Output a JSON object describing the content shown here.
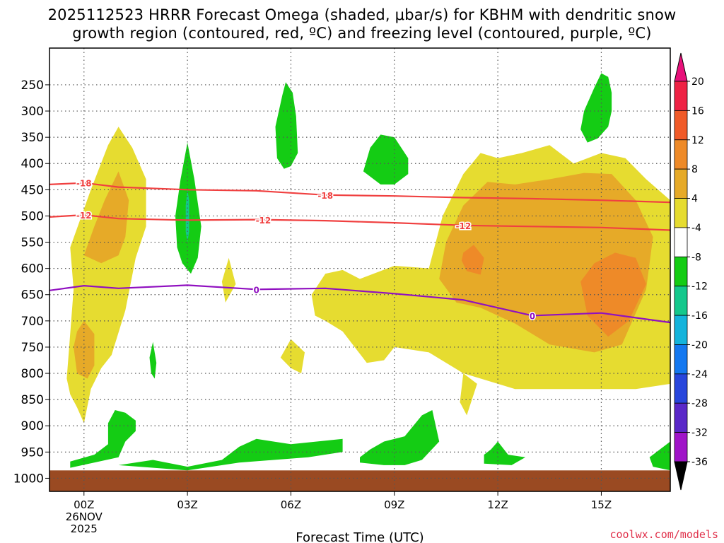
{
  "chart_data": {
    "type": "heatmap",
    "title_line1": "2025112523 HRRR Forecast Omega (shaded, μbar/s) for KBHM with dendritic snow",
    "title_line2": "growth region (contoured, red, ºC) and freezing level (contoured, purple, ºC)",
    "xlabel": "Forecast Time (UTC)",
    "ylabel": "",
    "x_range_hours": [
      -1,
      17
    ],
    "x_ticks": [
      {
        "hour": 0,
        "label": "00Z"
      },
      {
        "hour": 3,
        "label": "03Z"
      },
      {
        "hour": 6,
        "label": "06Z"
      },
      {
        "hour": 9,
        "label": "09Z"
      },
      {
        "hour": 12,
        "label": "12Z"
      },
      {
        "hour": 15,
        "label": "15Z"
      }
    ],
    "x_date_line1": "26NOV",
    "x_date_line2": "2025",
    "y_range_hpa": [
      1025,
      180
    ],
    "y_ticks": [
      250,
      300,
      350,
      400,
      450,
      500,
      550,
      600,
      650,
      700,
      750,
      800,
      850,
      900,
      950,
      1000
    ],
    "colorbar": {
      "labels": [
        "20",
        "16",
        "12",
        "8",
        "4",
        "-4",
        "-8",
        "-12",
        "-16",
        "-20",
        "-24",
        "-28",
        "-32",
        "-36"
      ],
      "colors": [
        "#ee2244",
        "#f05a28",
        "#ee8a28",
        "#e6aa28",
        "#e6dc30",
        "#ffffff",
        "#14cc14",
        "#14c88c",
        "#14b4dc",
        "#1478f0",
        "#2846dc",
        "#5a28c8",
        "#a014c8",
        "#a0a0a0"
      ],
      "top_cap_color": "#e8107a",
      "bottom_cap_color": "#000000"
    },
    "contours": [
      {
        "name": "dendritic -18C",
        "label": "-18",
        "color": "#f04040",
        "points": [
          [
            -1,
            440
          ],
          [
            0,
            437
          ],
          [
            1,
            445
          ],
          [
            3,
            450
          ],
          [
            5,
            452
          ],
          [
            7,
            460
          ],
          [
            9,
            462
          ],
          [
            11,
            465
          ],
          [
            13,
            467
          ],
          [
            15,
            470
          ],
          [
            17,
            474
          ]
        ],
        "label_hours": [
          0,
          7
        ]
      },
      {
        "name": "dendritic -12C",
        "label": "-12",
        "color": "#f04040",
        "points": [
          [
            -1,
            502
          ],
          [
            0,
            498
          ],
          [
            1,
            505
          ],
          [
            3,
            508
          ],
          [
            5,
            507
          ],
          [
            7,
            509
          ],
          [
            9,
            513
          ],
          [
            11,
            518
          ],
          [
            13,
            520
          ],
          [
            15,
            522
          ],
          [
            17,
            527
          ]
        ],
        "label_hours": [
          0,
          5.2,
          11
        ]
      },
      {
        "name": "freezing level 0C",
        "label": "0",
        "color": "#9010c0",
        "points": [
          [
            -1,
            642
          ],
          [
            0,
            633
          ],
          [
            1,
            638
          ],
          [
            3,
            632
          ],
          [
            5,
            640
          ],
          [
            7,
            638
          ],
          [
            9,
            648
          ],
          [
            11,
            660
          ],
          [
            13,
            690
          ],
          [
            15,
            685
          ],
          [
            17,
            703
          ]
        ],
        "label_hours": [
          5,
          13
        ]
      }
    ],
    "shaded_regions": [
      {
        "name": "yellow-main-east",
        "color": "#e6dc30",
        "pts": [
          [
            6.6,
            650
          ],
          [
            7,
            610
          ],
          [
            7.5,
            603
          ],
          [
            8,
            620
          ],
          [
            9,
            595
          ],
          [
            10,
            600
          ],
          [
            10.4,
            500
          ],
          [
            11,
            420
          ],
          [
            11.5,
            380
          ],
          [
            12,
            390
          ],
          [
            12.7,
            380
          ],
          [
            13.5,
            365
          ],
          [
            14.2,
            400
          ],
          [
            15,
            380
          ],
          [
            15.7,
            390
          ],
          [
            16.3,
            430
          ],
          [
            17,
            470
          ],
          [
            17,
            820
          ],
          [
            16,
            830
          ],
          [
            15,
            830
          ],
          [
            14,
            830
          ],
          [
            12.5,
            830
          ],
          [
            11,
            800
          ],
          [
            10,
            760
          ],
          [
            9,
            750
          ],
          [
            8.7,
            775
          ],
          [
            8.2,
            780
          ],
          [
            7.5,
            720
          ],
          [
            7,
            700
          ],
          [
            6.7,
            690
          ]
        ]
      },
      {
        "name": "orange-east",
        "color": "#e6aa28",
        "pts": [
          [
            10.3,
            620
          ],
          [
            10.5,
            550
          ],
          [
            11,
            480
          ],
          [
            11.7,
            435
          ],
          [
            12.5,
            440
          ],
          [
            13.5,
            430
          ],
          [
            14.5,
            418
          ],
          [
            15.3,
            420
          ],
          [
            16,
            470
          ],
          [
            16.5,
            540
          ],
          [
            16.3,
            640
          ],
          [
            15.6,
            745
          ],
          [
            14.8,
            760
          ],
          [
            13.5,
            745
          ],
          [
            12.5,
            705
          ],
          [
            11.5,
            675
          ],
          [
            10.8,
            665
          ]
        ]
      },
      {
        "name": "orange2-east-a",
        "color": "#ee8a28",
        "pts": [
          [
            11,
            570
          ],
          [
            11.3,
            555
          ],
          [
            11.6,
            580
          ],
          [
            11.5,
            612
          ],
          [
            11.1,
            605
          ],
          [
            10.95,
            585
          ]
        ]
      },
      {
        "name": "orange2-east-b",
        "color": "#ee8a28",
        "pts": [
          [
            14.4,
            625
          ],
          [
            14.8,
            590
          ],
          [
            15.4,
            570
          ],
          [
            16,
            580
          ],
          [
            16.3,
            630
          ],
          [
            15.8,
            700
          ],
          [
            15.2,
            730
          ],
          [
            14.6,
            690
          ]
        ]
      },
      {
        "name": "yellow-west",
        "color": "#e6dc30",
        "pts": [
          [
            -0.5,
            810
          ],
          [
            -0.3,
            640
          ],
          [
            -0.4,
            560
          ],
          [
            0.2,
            450
          ],
          [
            0.7,
            365
          ],
          [
            1,
            330
          ],
          [
            1.4,
            370
          ],
          [
            1.8,
            430
          ],
          [
            1.8,
            520
          ],
          [
            1.5,
            580
          ],
          [
            1.2,
            680
          ],
          [
            0.8,
            765
          ],
          [
            0.5,
            790
          ],
          [
            0.2,
            830
          ],
          [
            0,
            895
          ],
          [
            -0.2,
            865
          ],
          [
            -0.4,
            840
          ]
        ]
      },
      {
        "name": "orange-west-a",
        "color": "#e6aa28",
        "pts": [
          [
            0,
            575
          ],
          [
            0.3,
            520
          ],
          [
            0.6,
            470
          ],
          [
            1,
            415
          ],
          [
            1.3,
            470
          ],
          [
            1.2,
            540
          ],
          [
            1,
            575
          ],
          [
            0.5,
            590
          ]
        ]
      },
      {
        "name": "orange-west-b",
        "color": "#e6aa28",
        "pts": [
          [
            -0.3,
            750
          ],
          [
            -0.2,
            720
          ],
          [
            0,
            700
          ],
          [
            0.3,
            725
          ],
          [
            0.3,
            785
          ],
          [
            0.1,
            810
          ],
          [
            -0.2,
            800
          ]
        ]
      },
      {
        "name": "yellow-small-1",
        "color": "#e6dc30",
        "pts": [
          [
            4,
            625
          ],
          [
            4.2,
            580
          ],
          [
            4.4,
            630
          ],
          [
            4.1,
            665
          ]
        ]
      },
      {
        "name": "yellow-small-2",
        "color": "#e6dc30",
        "pts": [
          [
            5.7,
            770
          ],
          [
            6,
            735
          ],
          [
            6.4,
            760
          ],
          [
            6.3,
            800
          ],
          [
            6,
            790
          ]
        ]
      },
      {
        "name": "yellow-small-3",
        "color": "#e6dc30",
        "pts": [
          [
            10.9,
            855
          ],
          [
            11,
            800
          ],
          [
            11.4,
            820
          ],
          [
            11.1,
            880
          ]
        ]
      },
      {
        "name": "green-upper-east",
        "color": "#14cc14",
        "pts": [
          [
            14.4,
            335
          ],
          [
            14.5,
            300
          ],
          [
            14.8,
            255
          ],
          [
            15,
            228
          ],
          [
            15.2,
            235
          ],
          [
            15.3,
            265
          ],
          [
            15.3,
            300
          ],
          [
            15.2,
            330
          ],
          [
            14.9,
            352
          ],
          [
            14.6,
            360
          ]
        ]
      },
      {
        "name": "green-06z",
        "color": "#14cc14",
        "pts": [
          [
            5.6,
            390
          ],
          [
            5.55,
            330
          ],
          [
            5.75,
            270
          ],
          [
            5.85,
            245
          ],
          [
            6.05,
            265
          ],
          [
            6.15,
            310
          ],
          [
            6.2,
            380
          ],
          [
            6.0,
            405
          ],
          [
            5.8,
            410
          ]
        ]
      },
      {
        "name": "green-09z",
        "color": "#14cc14",
        "pts": [
          [
            8.1,
            415
          ],
          [
            8.3,
            370
          ],
          [
            8.6,
            345
          ],
          [
            9,
            350
          ],
          [
            9.4,
            390
          ],
          [
            9.4,
            420
          ],
          [
            9.0,
            440
          ],
          [
            8.6,
            440
          ]
        ]
      },
      {
        "name": "green-03z",
        "color": "#14cc14",
        "pts": [
          [
            2.65,
            500
          ],
          [
            2.8,
            430
          ],
          [
            3,
            360
          ],
          [
            3.2,
            430
          ],
          [
            3.4,
            520
          ],
          [
            3.3,
            580
          ],
          [
            3.1,
            610
          ],
          [
            2.85,
            590
          ],
          [
            2.7,
            560
          ]
        ]
      },
      {
        "name": "teal-03z",
        "color": "#14c88c",
        "pts": [
          [
            2.95,
            480
          ],
          [
            3,
            450
          ],
          [
            3.05,
            470
          ],
          [
            3.05,
            530
          ],
          [
            3,
            550
          ],
          [
            2.95,
            530
          ]
        ]
      },
      {
        "name": "green-small-2z",
        "color": "#14cc14",
        "pts": [
          [
            1.9,
            770
          ],
          [
            2,
            740
          ],
          [
            2.1,
            780
          ],
          [
            2.05,
            810
          ],
          [
            1.95,
            800
          ]
        ]
      },
      {
        "name": "green-low-1",
        "color": "#14cc14",
        "pts": [
          [
            -0.4,
            980
          ],
          [
            1,
            960
          ],
          [
            1.2,
            930
          ],
          [
            1.5,
            910
          ],
          [
            1.5,
            890
          ],
          [
            1.2,
            875
          ],
          [
            0.9,
            870
          ],
          [
            0.7,
            895
          ],
          [
            0.7,
            935
          ],
          [
            0.3,
            955
          ],
          [
            -0.4,
            968
          ]
        ]
      },
      {
        "name": "green-low-2",
        "color": "#14cc14",
        "pts": [
          [
            1,
            975
          ],
          [
            2,
            965
          ],
          [
            3,
            978
          ],
          [
            4,
            965
          ],
          [
            4.5,
            940
          ],
          [
            5,
            925
          ],
          [
            6,
            935
          ],
          [
            7.5,
            925
          ],
          [
            7.5,
            950
          ],
          [
            6.5,
            960
          ],
          [
            5.5,
            965
          ],
          [
            4.5,
            970
          ],
          [
            3,
            985
          ]
        ]
      },
      {
        "name": "green-low-3",
        "color": "#14cc14",
        "pts": [
          [
            8,
            960
          ],
          [
            8.3,
            945
          ],
          [
            8.7,
            930
          ],
          [
            9.3,
            920
          ],
          [
            9.8,
            880
          ],
          [
            10.1,
            870
          ],
          [
            10.3,
            930
          ],
          [
            9.8,
            965
          ],
          [
            9.3,
            975
          ],
          [
            8.7,
            975
          ],
          [
            8,
            970
          ]
        ]
      },
      {
        "name": "green-low-4",
        "color": "#14cc14",
        "pts": [
          [
            11.6,
            955
          ],
          [
            11.8,
            945
          ],
          [
            12,
            930
          ],
          [
            12.3,
            955
          ],
          [
            12.8,
            960
          ],
          [
            12.4,
            975
          ],
          [
            11.6,
            972
          ]
        ]
      },
      {
        "name": "green-low-5",
        "color": "#14cc14",
        "pts": [
          [
            16.4,
            960
          ],
          [
            17,
            930
          ],
          [
            17,
            985
          ],
          [
            16.5,
            978
          ]
        ]
      }
    ],
    "ground": {
      "color": "#9a4a22",
      "from_hpa": 985
    }
  },
  "footer": {
    "watermark": "coolwx.com/models"
  }
}
